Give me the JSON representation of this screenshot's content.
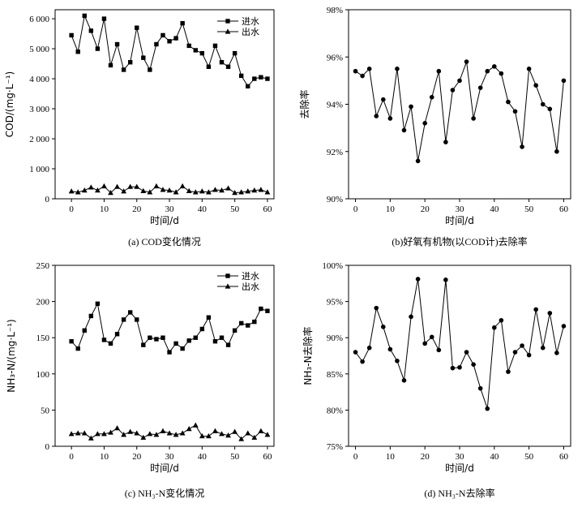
{
  "chart_data": [
    {
      "type": "line",
      "title": "",
      "caption": "(a) COD变化情况",
      "xlabel": "时间/d",
      "ylabel": "COD/(mg·L⁻¹)",
      "xlim": [
        -5,
        62
      ],
      "ylim": [
        0,
        6300
      ],
      "xticks": [
        0,
        10,
        20,
        30,
        40,
        50,
        60
      ],
      "yticks": [
        0,
        1000,
        2000,
        3000,
        4000,
        5000,
        6000
      ],
      "ytick_labels": [
        "0",
        "1 000",
        "2 000",
        "3 000",
        "4 000",
        "5 000",
        "6 000"
      ],
      "legend": "top-right",
      "series": [
        {
          "name": "进水",
          "marker": "square",
          "x": [
            0,
            2,
            4,
            6,
            8,
            10,
            12,
            14,
            16,
            18,
            20,
            22,
            24,
            26,
            28,
            30,
            32,
            34,
            36,
            38,
            40,
            42,
            44,
            46,
            48,
            50,
            52,
            54,
            56,
            58,
            60
          ],
          "y": [
            5450,
            4900,
            6100,
            5600,
            5000,
            6000,
            4450,
            5150,
            4300,
            4550,
            5700,
            4700,
            4300,
            5150,
            5450,
            5250,
            5350,
            5850,
            5100,
            4950,
            4850,
            4400,
            5100,
            4550,
            4400,
            4850,
            4100,
            3750,
            4000,
            4050,
            4000
          ]
        },
        {
          "name": "出水",
          "marker": "triangle",
          "x": [
            0,
            2,
            4,
            6,
            8,
            10,
            12,
            14,
            16,
            18,
            20,
            22,
            24,
            26,
            28,
            30,
            32,
            34,
            36,
            38,
            40,
            42,
            44,
            46,
            48,
            50,
            52,
            54,
            56,
            58,
            60
          ],
          "y": [
            250,
            220,
            280,
            380,
            280,
            420,
            200,
            400,
            250,
            400,
            400,
            260,
            220,
            420,
            300,
            280,
            220,
            420,
            260,
            220,
            250,
            220,
            300,
            280,
            350,
            200,
            220,
            250,
            280,
            300,
            220
          ]
        }
      ]
    },
    {
      "type": "line",
      "title": "",
      "caption": "(b)好氧有机物(以COD计)去除率",
      "xlabel": "时间/d",
      "ylabel": "去除率",
      "xlim": [
        -2,
        62
      ],
      "ylim": [
        90,
        98
      ],
      "xticks": [
        0,
        10,
        20,
        30,
        40,
        50,
        60
      ],
      "yticks": [
        90,
        92,
        94,
        96,
        98
      ],
      "ytick_labels": [
        "90%",
        "92%",
        "94%",
        "96%",
        "98%"
      ],
      "series": [
        {
          "name": "去除率",
          "marker": "circle",
          "x": [
            0,
            2,
            4,
            6,
            8,
            10,
            12,
            14,
            16,
            18,
            20,
            22,
            24,
            26,
            28,
            30,
            32,
            34,
            36,
            38,
            40,
            42,
            44,
            46,
            48,
            50,
            52,
            54,
            56,
            58,
            60
          ],
          "y": [
            95.4,
            95.2,
            95.5,
            93.5,
            94.2,
            93.4,
            95.5,
            92.9,
            93.9,
            91.6,
            93.2,
            94.3,
            95.4,
            92.4,
            94.6,
            95.0,
            95.8,
            93.4,
            94.7,
            95.4,
            95.6,
            95.3,
            94.1,
            93.7,
            92.2,
            95.5,
            94.8,
            94.0,
            93.8,
            92.0,
            95.0
          ]
        }
      ]
    },
    {
      "type": "line",
      "title": "",
      "caption": "(c) NH₃-N变化情况",
      "xlabel": "时间/d",
      "ylabel": "NH₃-N/(mg·L⁻¹)",
      "xlim": [
        -5,
        62
      ],
      "ylim": [
        0,
        250
      ],
      "xticks": [
        0,
        10,
        20,
        30,
        40,
        50,
        60
      ],
      "yticks": [
        0,
        50,
        100,
        150,
        200,
        250
      ],
      "ytick_labels": [
        "0",
        "50",
        "100",
        "150",
        "200",
        "250"
      ],
      "legend": "top-right",
      "series": [
        {
          "name": "进水",
          "marker": "square",
          "x": [
            0,
            2,
            4,
            6,
            8,
            10,
            12,
            14,
            16,
            18,
            20,
            22,
            24,
            26,
            28,
            30,
            32,
            34,
            36,
            38,
            40,
            42,
            44,
            46,
            48,
            50,
            52,
            54,
            56,
            58,
            60
          ],
          "y": [
            145,
            135,
            160,
            180,
            197,
            147,
            142,
            155,
            175,
            185,
            175,
            140,
            150,
            148,
            150,
            130,
            142,
            135,
            146,
            150,
            162,
            178,
            145,
            150,
            140,
            160,
            170,
            167,
            172,
            190,
            187
          ]
        },
        {
          "name": "出水",
          "marker": "triangle",
          "x": [
            0,
            2,
            4,
            6,
            8,
            10,
            12,
            14,
            16,
            18,
            20,
            22,
            24,
            26,
            28,
            30,
            32,
            34,
            36,
            38,
            40,
            42,
            44,
            46,
            48,
            50,
            52,
            54,
            56,
            58,
            60
          ],
          "y": [
            17,
            18,
            18,
            11,
            17,
            17,
            19,
            25,
            16,
            20,
            18,
            12,
            17,
            16,
            21,
            18,
            16,
            18,
            24,
            29,
            14,
            14,
            21,
            17,
            15,
            20,
            10,
            18,
            12,
            21,
            16
          ]
        }
      ]
    },
    {
      "type": "line",
      "title": "",
      "caption": "(d) NH₃-N去除率",
      "xlabel": "时间/d",
      "ylabel": "NH₃-N去除率",
      "xlim": [
        -2,
        62
      ],
      "ylim": [
        75,
        100
      ],
      "xticks": [
        0,
        10,
        20,
        30,
        40,
        50,
        60
      ],
      "yticks": [
        75,
        80,
        85,
        90,
        95,
        100
      ],
      "ytick_labels": [
        "75%",
        "80%",
        "85%",
        "90%",
        "95%",
        "100%"
      ],
      "series": [
        {
          "name": "去除率",
          "marker": "circle",
          "x": [
            0,
            2,
            4,
            6,
            8,
            10,
            12,
            14,
            16,
            18,
            20,
            22,
            24,
            26,
            28,
            30,
            32,
            34,
            36,
            38,
            40,
            42,
            44,
            46,
            48,
            50,
            52,
            54,
            56,
            58,
            60
          ],
          "y": [
            88.0,
            86.7,
            88.6,
            94.1,
            91.5,
            88.4,
            86.8,
            84.1,
            92.9,
            98.1,
            89.2,
            90.1,
            88.3,
            98.0,
            85.8,
            85.9,
            88.0,
            86.3,
            83.0,
            80.2,
            91.4,
            92.4,
            85.3,
            88.0,
            88.9,
            87.6,
            93.9,
            88.6,
            93.4,
            87.9,
            91.6
          ]
        }
      ]
    }
  ]
}
